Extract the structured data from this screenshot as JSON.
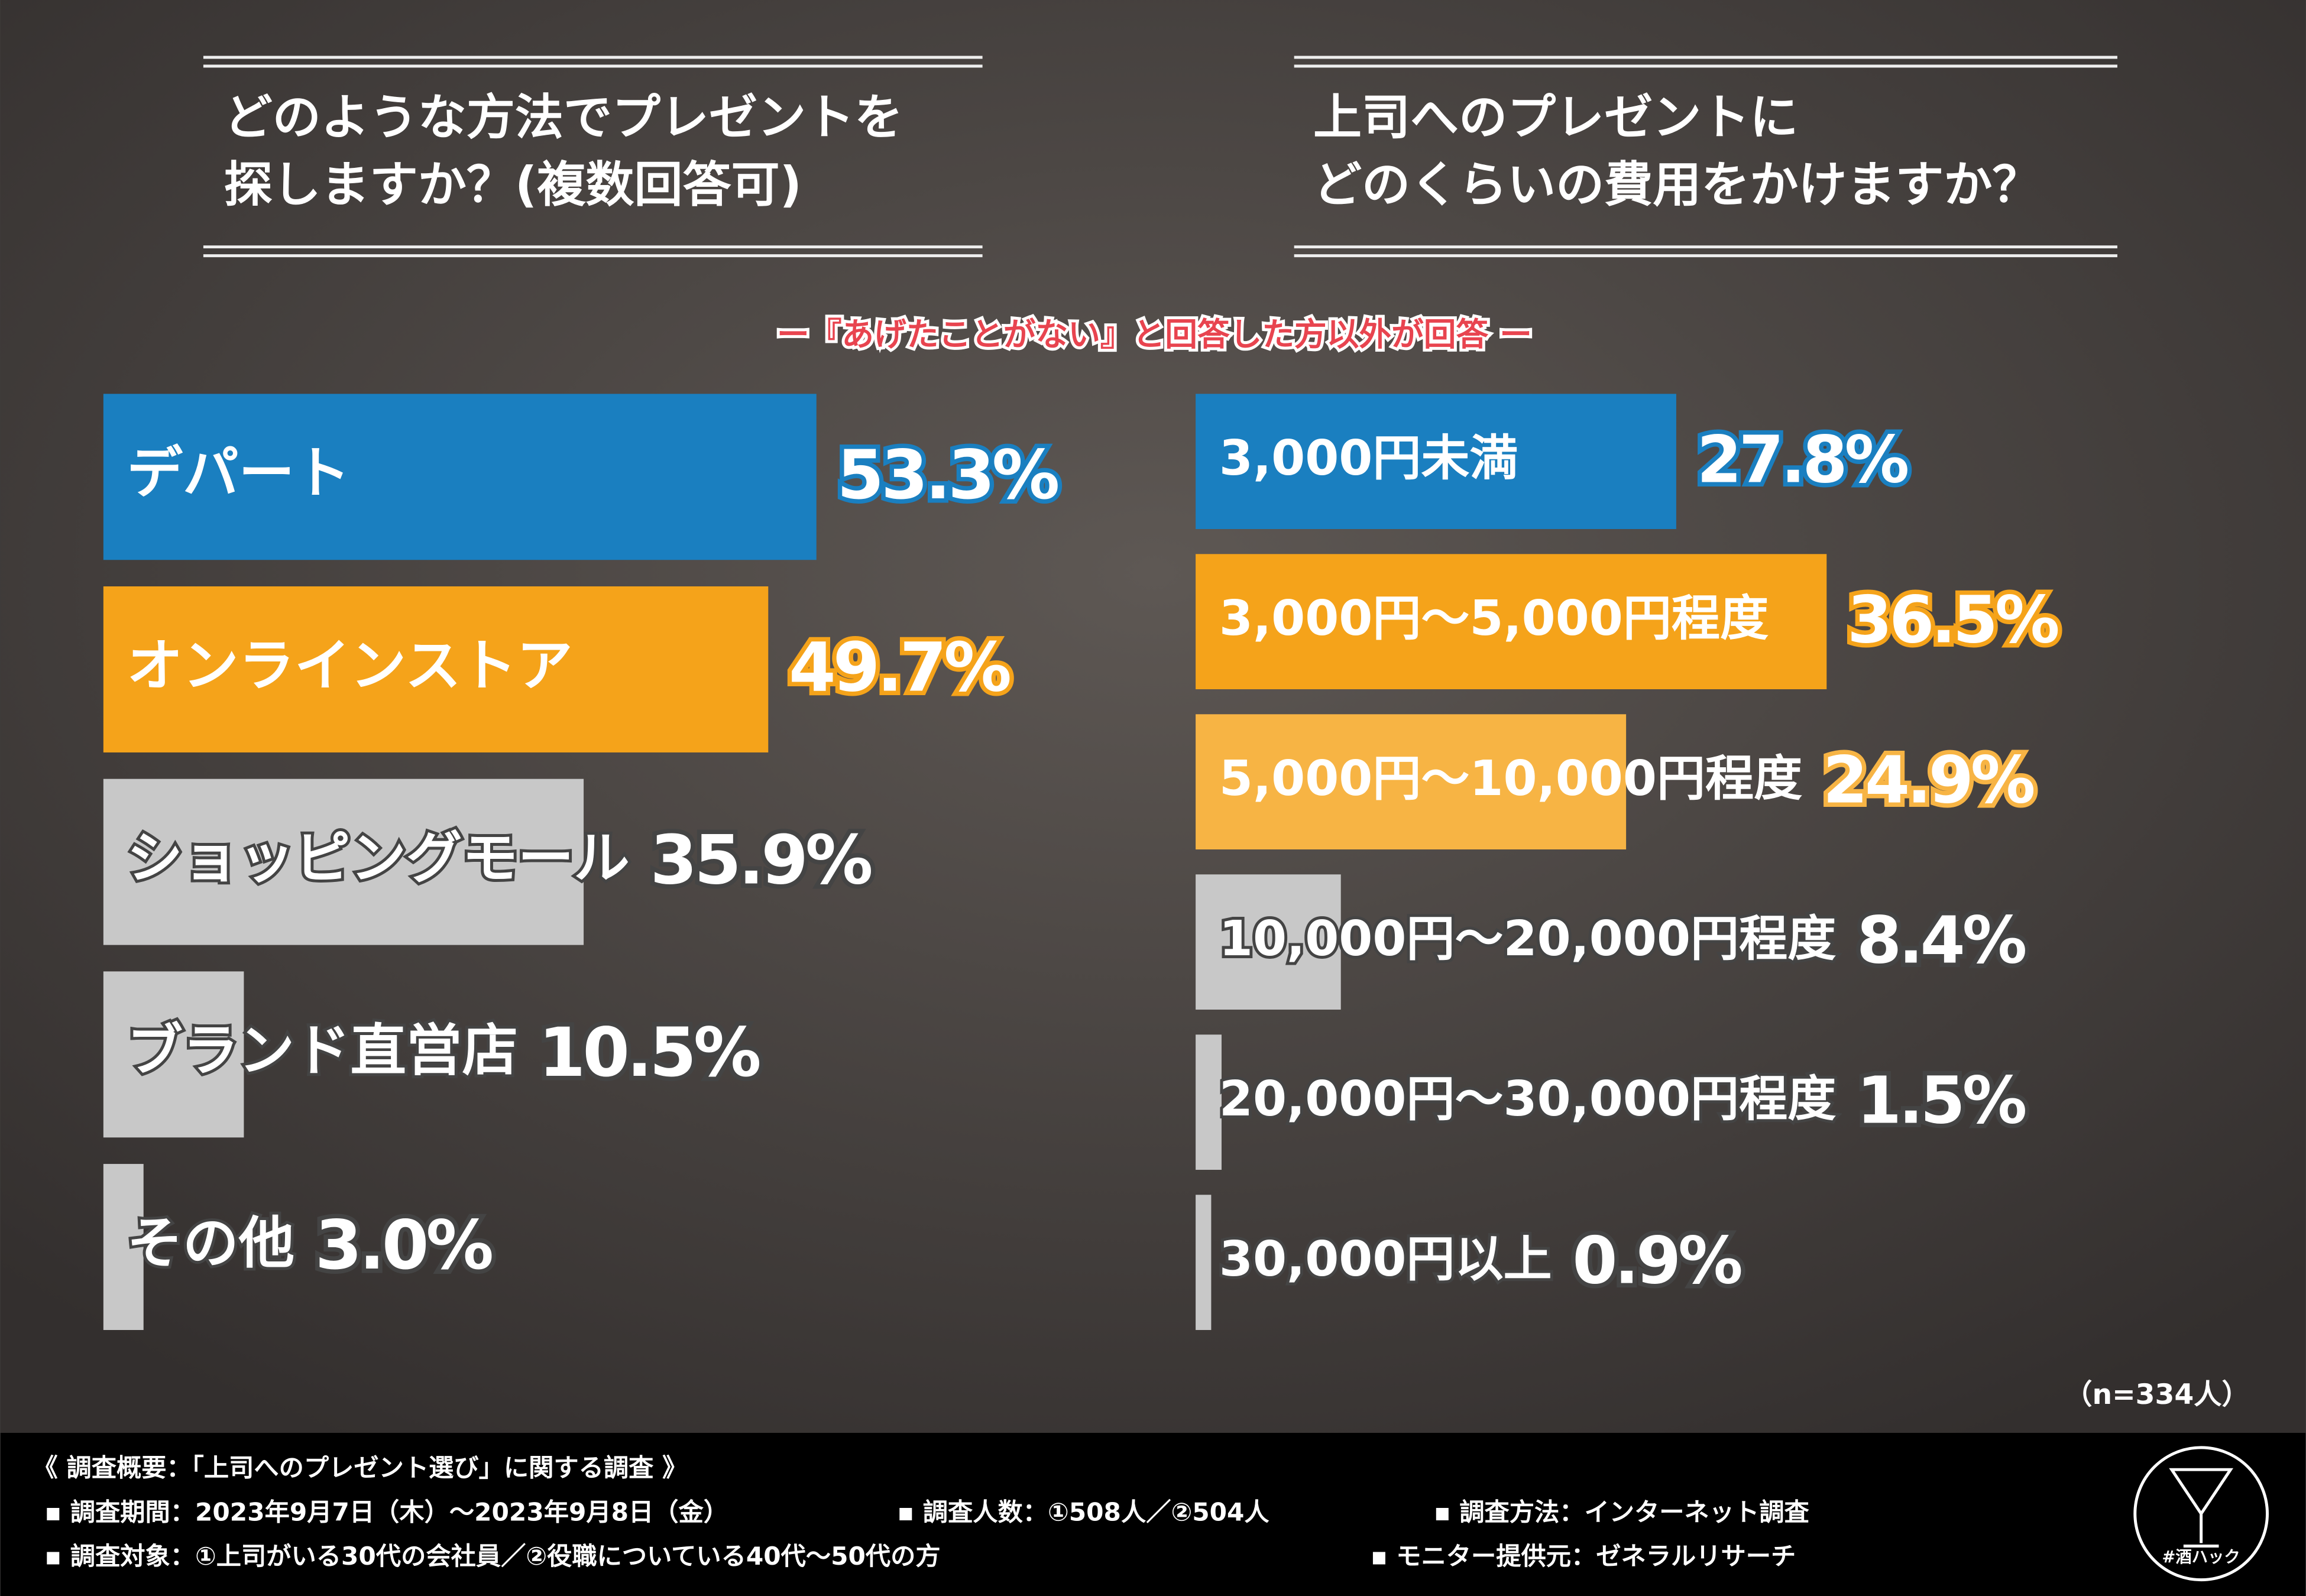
{
  "chart_data": [
    {
      "type": "bar",
      "title": [
        "どのような方法でプレゼントを",
        "探しますか？(複数回答可)"
      ],
      "categories": [
        "デパート",
        "オンラインストア",
        "ショッピングモール",
        "ブランド直営店",
        "その他"
      ],
      "values": [
        53.3,
        49.7,
        35.9,
        10.5,
        3.0
      ],
      "value_labels": [
        "53.3%",
        "49.7%",
        "35.9%",
        "10.5%",
        "3.0%"
      ],
      "colors": [
        "#1a7fc0",
        "#f5a31a",
        "#c8c8c8",
        "#c8c8c8",
        "#c8c8c8"
      ]
    },
    {
      "type": "bar",
      "title": [
        "上司へのプレゼントに",
        "どのくらいの費用をかけますか？"
      ],
      "subtitle": "ー『あげたことがない』と回答した方以外が回答 ー",
      "categories": [
        "3,000円未満",
        "3,000円～5,000円程度",
        "5,000円～10,000円程度",
        "10,000円～20,000円程度",
        "20,000円～30,000円程度",
        "30,000円以上"
      ],
      "values": [
        27.8,
        36.5,
        24.9,
        8.4,
        1.5,
        0.9
      ],
      "value_labels": [
        "27.8%",
        "36.5%",
        "24.9%",
        "8.4%",
        "1.5%",
        "0.9%"
      ],
      "colors": [
        "#1a7fc0",
        "#f5a31a",
        "#f7b444",
        "#c8c8c8",
        "#c8c8c8",
        "#c8c8c8"
      ],
      "note": "（n=334人）"
    }
  ],
  "survey": {
    "heading": "《 調査概要：「上司へのプレゼント選び」に関する調査 》",
    "items": [
      "▪ 調査期間：2023年9月7日（木）～2023年9月8日（金）",
      "▪ 調査人数：①508人／②504人",
      "▪ 調査方法：インターネット調査",
      "▪ 調査対象：①上司がいる30代の会社員／②役職についている40代～50代の方",
      "▪ モニター提供元：ゼネラルリサーチ"
    ],
    "logo": "#酒ハック"
  }
}
